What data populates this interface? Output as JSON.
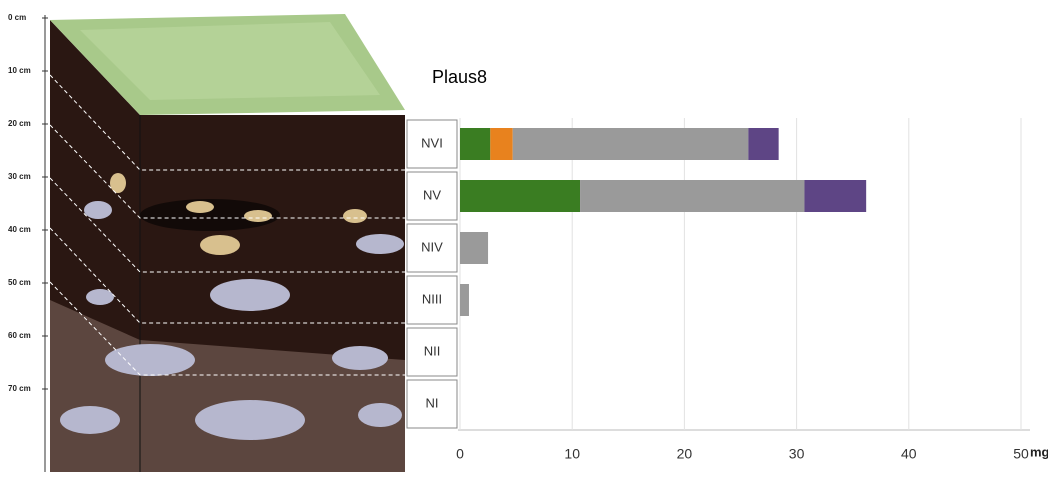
{
  "chart_data": {
    "type": "bar",
    "orientation": "horizontal",
    "stacked": true,
    "title": "Plaus8",
    "x_label": "mg/kg",
    "depth_labels": [
      "0 cm",
      "10 cm",
      "20 cm",
      "30 cm",
      "40 cm",
      "50 cm",
      "60 cm",
      "70 cm"
    ],
    "categories": [
      "NVI",
      "NV",
      "NIV",
      "NIII",
      "NII",
      "NI"
    ],
    "series": [
      {
        "color": "#3a7d22",
        "values": [
          2.7,
          10.7,
          0,
          0,
          0,
          0
        ]
      },
      {
        "color": "#e8821e",
        "values": [
          2.0,
          0,
          0,
          0,
          0,
          0
        ]
      },
      {
        "color": "#9a9a9a",
        "values": [
          21,
          20,
          2.5,
          0.8,
          0,
          0
        ]
      },
      {
        "color": "#5e4585",
        "values": [
          2.7,
          5.5,
          0,
          0,
          0,
          0
        ]
      }
    ],
    "xlim": [
      0,
      50
    ],
    "xticks": [
      0,
      10,
      20,
      30,
      40,
      50
    ],
    "grid": true
  }
}
